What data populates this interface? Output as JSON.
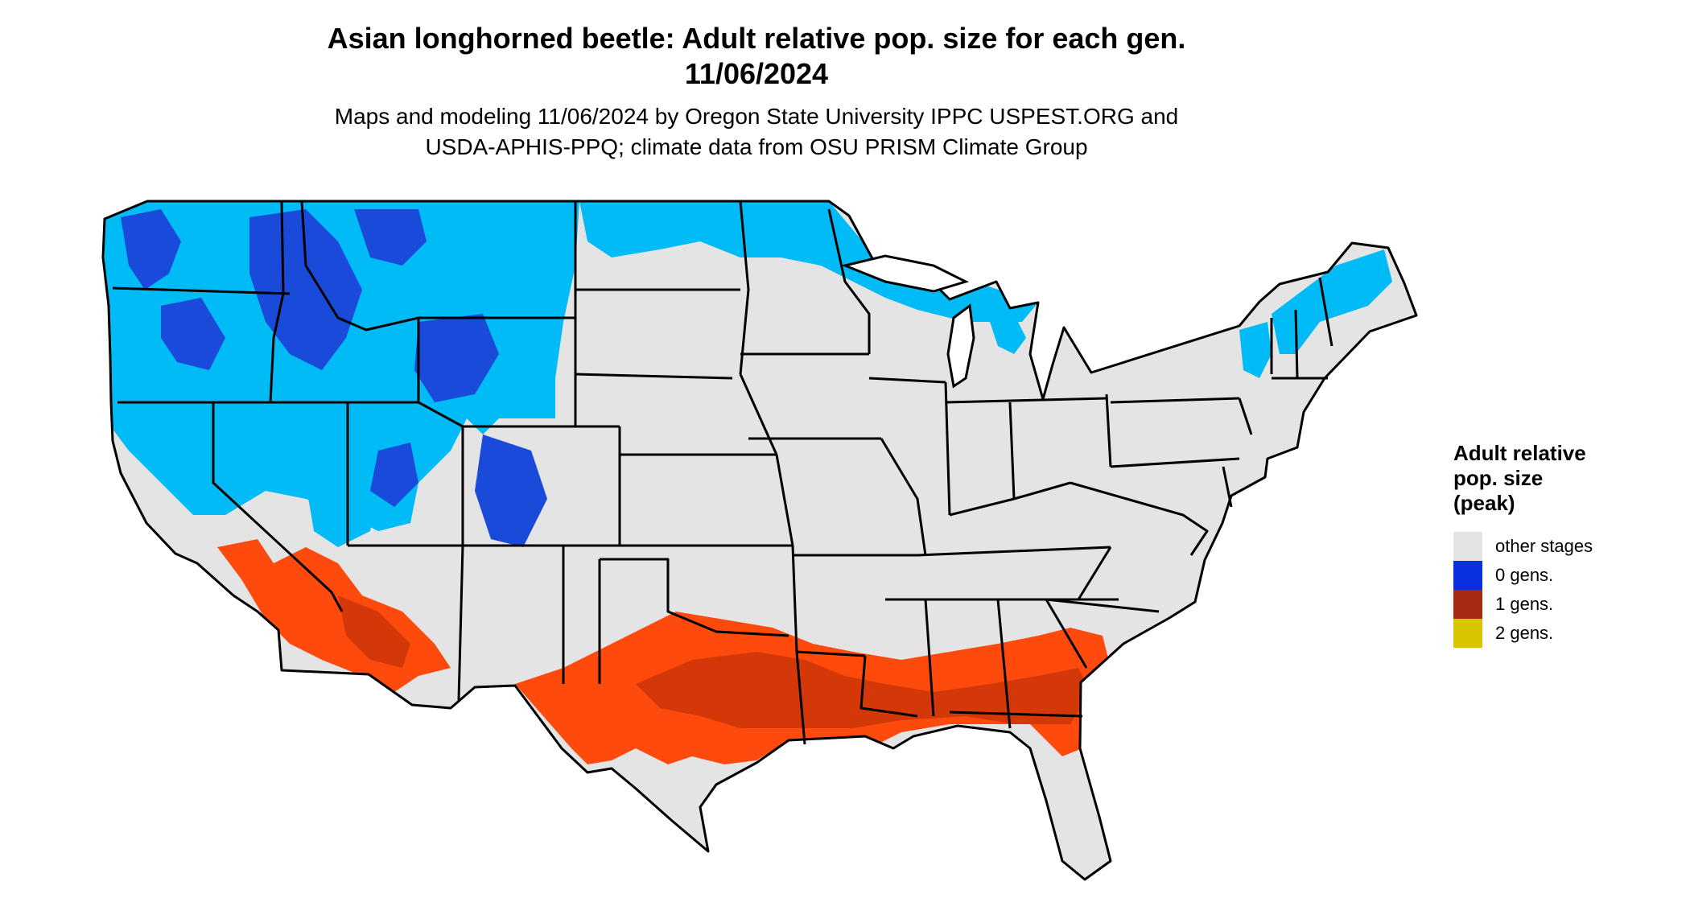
{
  "title": {
    "line1": "Asian longhorned beetle: Adult relative pop. size for each gen.",
    "line2": "11/06/2024"
  },
  "subtitle": {
    "line1": "Maps and modeling 11/06/2024 by Oregon State University IPPC USPEST.ORG and",
    "line2": "USDA-APHIS-PPQ; climate data from OSU PRISM Climate Group"
  },
  "legend": {
    "title_lines": [
      "Adult relative",
      "pop. size",
      "(peak)"
    ],
    "items": [
      {
        "label": "other stages",
        "color": "#e4e4e4"
      },
      {
        "label": "0 gens.",
        "color": "#0a2fdc"
      },
      {
        "label": "1 gens.",
        "color": "#a52a14"
      },
      {
        "label": "2 gens.",
        "color": "#d9c400"
      }
    ]
  },
  "colors": {
    "land": "#e4e4e4",
    "border": "#000000",
    "cold_light": "#00bbf5",
    "cold_dark": "#1a4ad9",
    "warm_light": "#ff4a0e",
    "warm_dark": "#d43808"
  }
}
